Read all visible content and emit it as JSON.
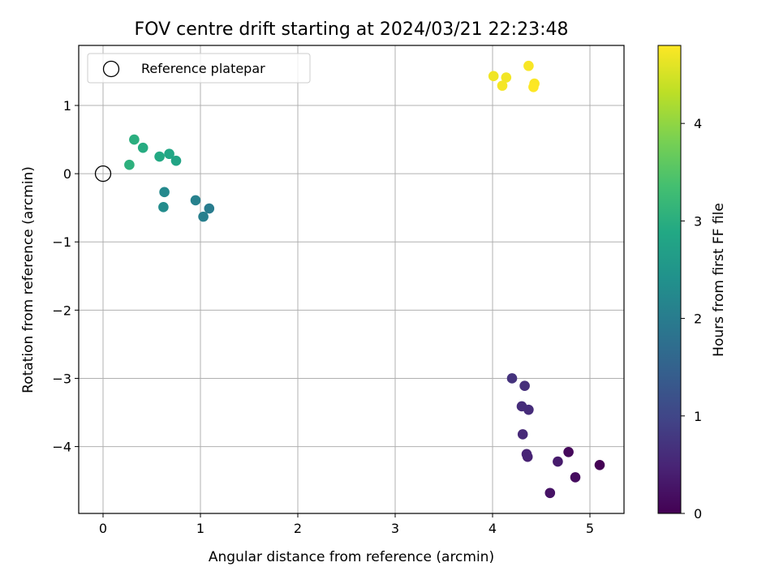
{
  "chart_data": {
    "type": "scatter",
    "title": "FOV centre drift starting at 2024/03/21 22:23:48",
    "xlabel": "Angular distance from reference (arcmin)",
    "ylabel": "Rotation from reference (arcmin)",
    "xlim": [
      -0.25,
      5.35
    ],
    "ylim": [
      -4.98,
      1.88
    ],
    "xticks": [
      0,
      1,
      2,
      3,
      4,
      5
    ],
    "xtick_labels": [
      "0",
      "1",
      "2",
      "3",
      "4",
      "5"
    ],
    "yticks": [
      -4,
      -3,
      -2,
      -1,
      0,
      1
    ],
    "ytick_labels": [
      "−4",
      "−3",
      "−2",
      "−1",
      "0",
      "1"
    ],
    "grid": true,
    "legend": {
      "placement": "top-left",
      "entries": [
        "Reference platepar"
      ]
    },
    "reference_point": {
      "x": 0,
      "y": 0
    },
    "colorbar": {
      "label": "Hours from first FF file",
      "range": [
        0,
        4.8
      ],
      "ticks": [
        0,
        1,
        2,
        3,
        4
      ],
      "tick_labels": [
        "0",
        "1",
        "2",
        "3",
        "4"
      ],
      "colormap": "viridis"
    },
    "points": [
      {
        "x": 5.1,
        "y": -4.27,
        "t": 0.0
      },
      {
        "x": 4.78,
        "y": -4.08,
        "t": 0.1
      },
      {
        "x": 4.85,
        "y": -4.45,
        "t": 0.15
      },
      {
        "x": 4.59,
        "y": -4.68,
        "t": 0.25
      },
      {
        "x": 4.67,
        "y": -4.22,
        "t": 0.35
      },
      {
        "x": 4.36,
        "y": -4.15,
        "t": 0.45
      },
      {
        "x": 4.35,
        "y": -4.11,
        "t": 0.5
      },
      {
        "x": 4.31,
        "y": -3.82,
        "t": 0.55
      },
      {
        "x": 4.37,
        "y": -3.46,
        "t": 0.6
      },
      {
        "x": 4.3,
        "y": -3.41,
        "t": 0.62
      },
      {
        "x": 4.33,
        "y": -3.11,
        "t": 0.65
      },
      {
        "x": 4.2,
        "y": -3.0,
        "t": 0.7
      },
      {
        "x": 1.09,
        "y": -0.51,
        "t": 2.0
      },
      {
        "x": 1.03,
        "y": -0.63,
        "t": 2.05
      },
      {
        "x": 0.95,
        "y": -0.39,
        "t": 2.1
      },
      {
        "x": 0.63,
        "y": -0.27,
        "t": 2.25
      },
      {
        "x": 0.62,
        "y": -0.49,
        "t": 2.3
      },
      {
        "x": 0.75,
        "y": 0.19,
        "t": 2.8
      },
      {
        "x": 0.68,
        "y": 0.29,
        "t": 2.85
      },
      {
        "x": 0.58,
        "y": 0.25,
        "t": 2.9
      },
      {
        "x": 0.41,
        "y": 0.38,
        "t": 2.95
      },
      {
        "x": 0.32,
        "y": 0.5,
        "t": 3.0
      },
      {
        "x": 0.27,
        "y": 0.13,
        "t": 3.05
      },
      {
        "x": 4.01,
        "y": 1.43,
        "t": 4.7
      },
      {
        "x": 4.14,
        "y": 1.41,
        "t": 4.72
      },
      {
        "x": 4.1,
        "y": 1.29,
        "t": 4.74
      },
      {
        "x": 4.37,
        "y": 1.58,
        "t": 4.76
      },
      {
        "x": 4.43,
        "y": 1.32,
        "t": 4.78
      },
      {
        "x": 4.42,
        "y": 1.27,
        "t": 4.8
      }
    ]
  }
}
